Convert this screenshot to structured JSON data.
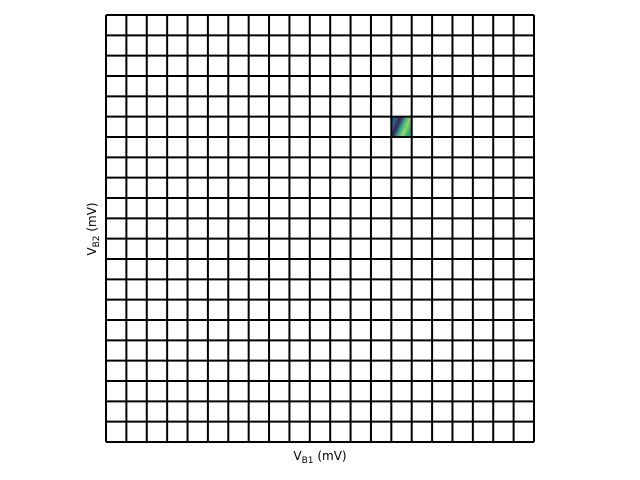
{
  "chart_data": {
    "type": "heatmap",
    "grid": {
      "rows": 21,
      "cols": 21
    },
    "xlabel_parts": {
      "main": "V",
      "sub": "B1",
      "unit": " (mV)"
    },
    "ylabel_parts": {
      "main": "V",
      "sub": "B2",
      "unit": " (mV)"
    },
    "highlighted_cells": [
      {
        "row": 5,
        "col": 14,
        "colormap": [
          "#3b1f5c",
          "#2b6b8f",
          "#2fa88a",
          "#9bd65a"
        ]
      }
    ],
    "grid_color": "#000000",
    "cell_color": "#ffffff"
  }
}
